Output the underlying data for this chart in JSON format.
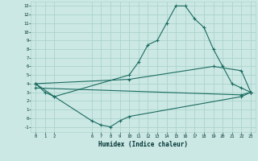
{
  "xlabel": "Humidex (Indice chaleur)",
  "bg_color": "#cce8e4",
  "grid_color": "#aad4cc",
  "line_color": "#1a6b60",
  "xlim": [
    -0.5,
    23.5
  ],
  "ylim": [
    -1.6,
    13.5
  ],
  "xticks": [
    0,
    1,
    2,
    6,
    7,
    8,
    9,
    10,
    11,
    12,
    13,
    14,
    15,
    16,
    17,
    18,
    19,
    20,
    21,
    22,
    23
  ],
  "yticks": [
    -1,
    0,
    1,
    2,
    3,
    4,
    5,
    6,
    7,
    8,
    9,
    10,
    11,
    12,
    13
  ],
  "line1_x": [
    0,
    1,
    2,
    10,
    11,
    12,
    13,
    14,
    15,
    16,
    17,
    18,
    19,
    20,
    21,
    22,
    23
  ],
  "line1_y": [
    4,
    3,
    2.5,
    5,
    6.5,
    8.5,
    9,
    11,
    13,
    13,
    11.5,
    10.5,
    8,
    6,
    4,
    3.5,
    3
  ],
  "line2_x": [
    0,
    10,
    19,
    22,
    23
  ],
  "line2_y": [
    4,
    4.5,
    6,
    5.5,
    3
  ],
  "line3_x": [
    0,
    2,
    6,
    7,
    8,
    9,
    10,
    22,
    23
  ],
  "line3_y": [
    4,
    2.5,
    -0.3,
    -0.8,
    -1.0,
    -0.3,
    0.2,
    2.5,
    3
  ],
  "line4_x": [
    0,
    22,
    23
  ],
  "line4_y": [
    3.5,
    2.7,
    3
  ]
}
